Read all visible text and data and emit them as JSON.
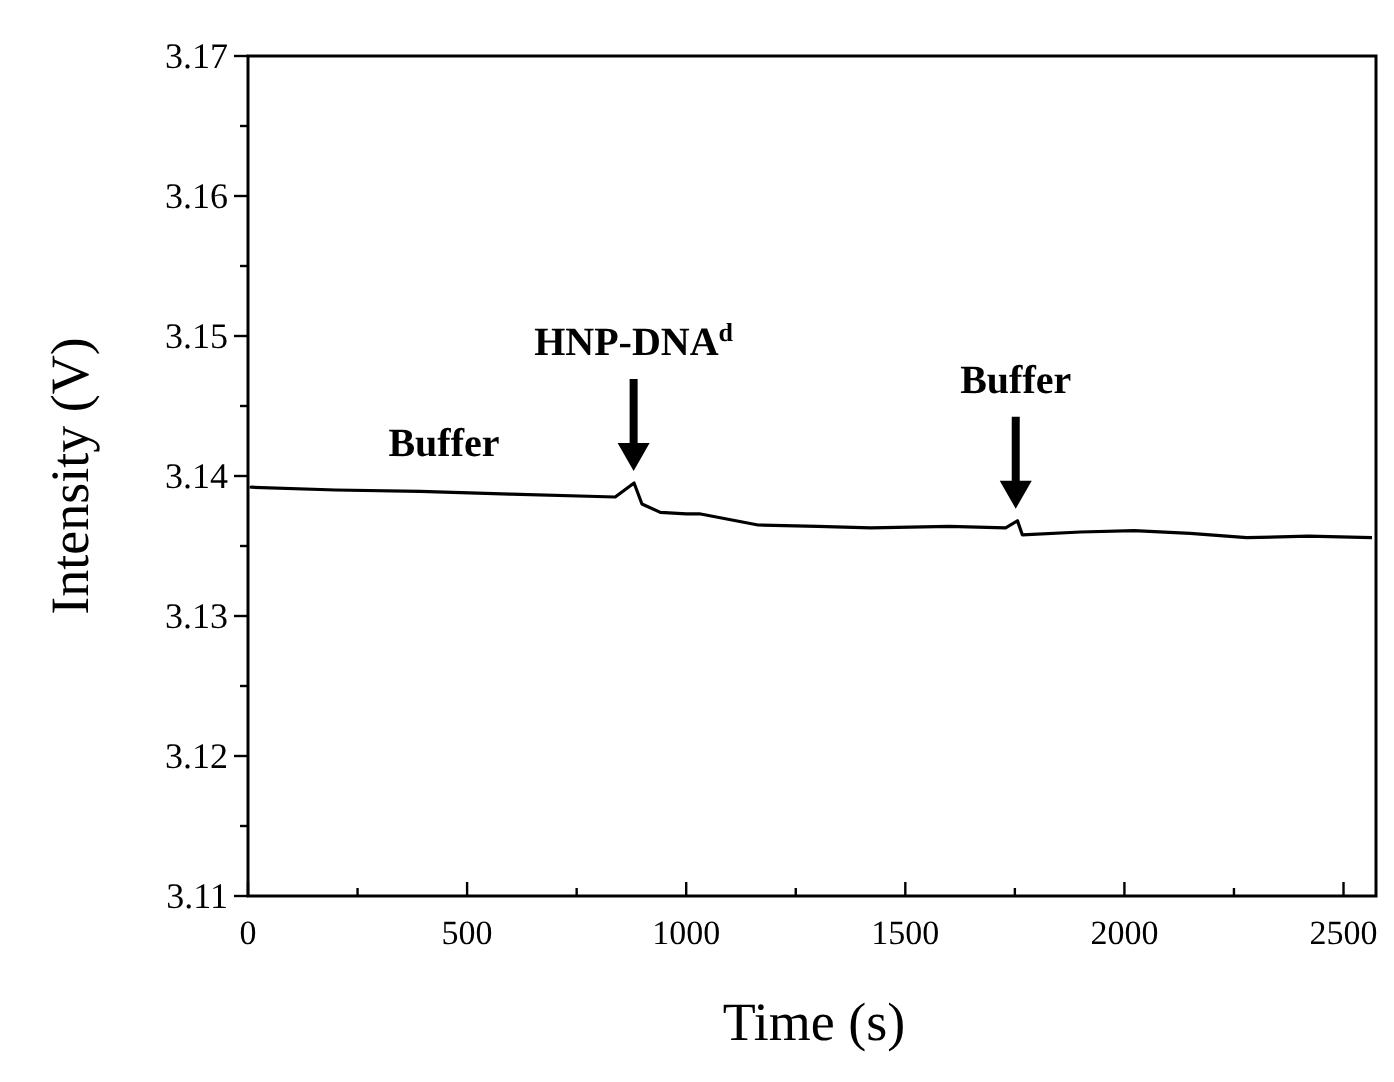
{
  "chart_data": {
    "type": "line",
    "xlabel": "Time (s)",
    "ylabel": "Intensity (V)",
    "xlim": [
      0,
      2565
    ],
    "ylim": [
      3.11,
      3.17
    ],
    "xticks": [
      0,
      {
        "value": 250,
        "label": null
      },
      500,
      {
        "value": 750,
        "label": null
      },
      1000,
      {
        "value": 1250,
        "label": null
      },
      1500,
      {
        "value": 1750,
        "label": null
      },
      2000,
      {
        "value": 2250,
        "label": null
      },
      2500
    ],
    "yticks": [
      3.11,
      {
        "value": 3.115,
        "label": null
      },
      3.12,
      {
        "value": 3.125,
        "label": null
      },
      3.13,
      {
        "value": 3.135,
        "label": null
      },
      3.14,
      {
        "value": 3.145,
        "label": null
      },
      3.15,
      {
        "value": 3.155,
        "label": null
      },
      3.16,
      {
        "value": 3.165,
        "label": null
      },
      3.17
    ],
    "grid": false,
    "marker": "none",
    "line_style": "solid",
    "annotations": [
      {
        "text": "Buffer"
      },
      {
        "text": "HNP-DNA$^{d}$",
        "x": 880,
        "y": 3.1395
      },
      {
        "text": "Buffer",
        "x": 1752,
        "y": 3.1368
      }
    ],
    "series": [
      {
        "color": "#000000",
        "x": [
          7,
          200,
          393,
          600,
          838,
          881,
          899,
          941,
          1000,
          1030,
          1164,
          1300,
          1421,
          1600,
          1729,
          1756,
          1767,
          1900,
          2022,
          2150,
          2279,
          2420,
          2565
        ],
        "values": [
          3.1392,
          3.139,
          3.1389,
          3.1387,
          3.1385,
          3.1395,
          3.138,
          3.1374,
          3.1373,
          3.1373,
          3.1365,
          3.1364,
          3.1363,
          3.1364,
          3.1363,
          3.1368,
          3.1358,
          3.136,
          3.1361,
          3.1359,
          3.1356,
          3.1357,
          3.1356
        ]
      }
    ]
  }
}
